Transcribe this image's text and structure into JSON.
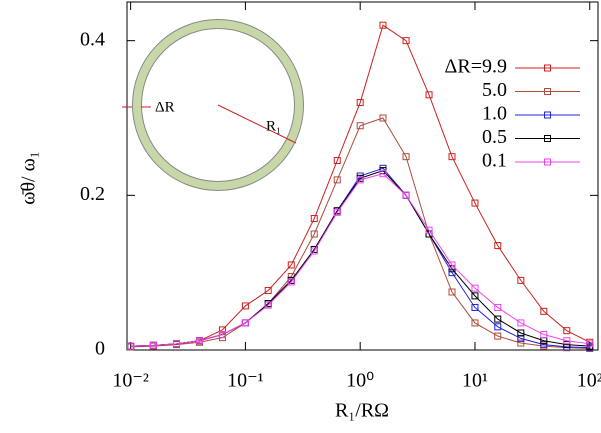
{
  "chart_data": {
    "type": "line",
    "xscale": "log",
    "xlabel": "R₁/RΩ",
    "ylabel": "ω̄θ/ ω₁",
    "annotations": [
      "ΔR",
      "R₁"
    ],
    "x": [
      0.01,
      0.0158,
      0.0251,
      0.0398,
      0.0631,
      0.1,
      0.158,
      0.251,
      0.398,
      0.631,
      1,
      1.58,
      2.51,
      3.98,
      6.31,
      10,
      15.8,
      25.1,
      39.8,
      63.1,
      100
    ],
    "series": [
      {
        "name": "ΔR=9.9",
        "color": "#cc2020",
        "values": [
          0.005,
          0.006,
          0.008,
          0.012,
          0.026,
          0.057,
          0.077,
          0.11,
          0.17,
          0.245,
          0.32,
          0.42,
          0.4,
          0.33,
          0.25,
          0.19,
          0.135,
          0.09,
          0.05,
          0.025,
          0.01
        ]
      },
      {
        "name": "5.0",
        "color": "#b04a3a",
        "values": [
          0.004,
          0.005,
          0.007,
          0.01,
          0.016,
          0.035,
          0.06,
          0.095,
          0.15,
          0.22,
          0.29,
          0.3,
          0.25,
          0.15,
          0.075,
          0.035,
          0.018,
          0.009,
          0.005,
          0.003,
          0.002
        ]
      },
      {
        "name": "1.0",
        "color": "#2020dd",
        "values": [
          0.005,
          0.006,
          0.008,
          0.012,
          0.02,
          0.035,
          0.06,
          0.09,
          0.13,
          0.18,
          0.225,
          0.235,
          0.2,
          0.15,
          0.1,
          0.055,
          0.03,
          0.015,
          0.007,
          0.004,
          0.003
        ]
      },
      {
        "name": "0.5",
        "color": "#000000",
        "values": [
          0.005,
          0.006,
          0.008,
          0.012,
          0.02,
          0.035,
          0.06,
          0.09,
          0.13,
          0.18,
          0.222,
          0.232,
          0.2,
          0.15,
          0.105,
          0.07,
          0.04,
          0.022,
          0.012,
          0.007,
          0.005
        ]
      },
      {
        "name": "0.1",
        "color": "#ee44ee",
        "values": [
          0.005,
          0.006,
          0.008,
          0.012,
          0.02,
          0.035,
          0.058,
          0.088,
          0.128,
          0.178,
          0.22,
          0.228,
          0.2,
          0.155,
          0.11,
          0.08,
          0.055,
          0.035,
          0.02,
          0.012,
          0.008
        ]
      }
    ],
    "xlim": [
      0.0093,
      118
    ],
    "xticks": [
      {
        "value": 0.01,
        "label": "10⁻²"
      },
      {
        "value": 0.1,
        "label": "10⁻¹"
      },
      {
        "value": 1,
        "label": "10⁰"
      },
      {
        "value": 10,
        "label": "10¹"
      },
      {
        "value": 100,
        "label": "10²"
      }
    ],
    "ylim": [
      0,
      0.45
    ],
    "yticks": [
      0,
      0.2,
      0.4
    ],
    "legend": "upper right",
    "grid": false
  }
}
